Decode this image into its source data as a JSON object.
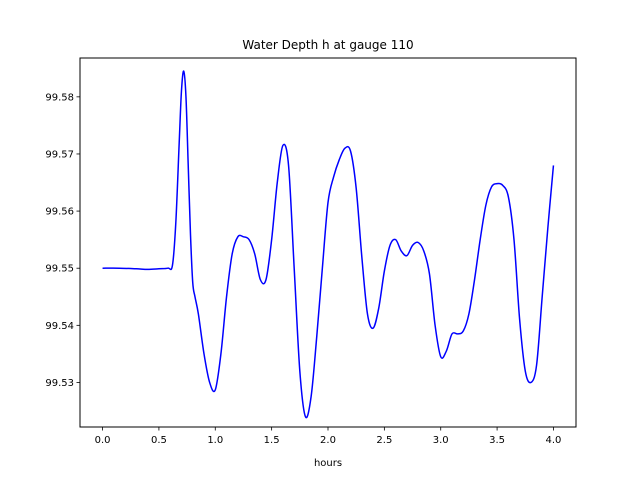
{
  "chart_data": {
    "type": "line",
    "title": "Water Depth h at gauge 110",
    "xlabel": "hours",
    "ylabel": "",
    "xlim": [
      -0.2,
      4.2
    ],
    "ylim": [
      99.5222,
      99.5868
    ],
    "x_ticks": [
      0.0,
      0.5,
      1.0,
      1.5,
      2.0,
      2.5,
      3.0,
      3.5,
      4.0
    ],
    "x_tick_labels": [
      "0.0",
      "0.5",
      "1.0",
      "1.5",
      "2.0",
      "2.5",
      "3.0",
      "3.5",
      "4.0"
    ],
    "y_ticks": [
      99.53,
      99.54,
      99.55,
      99.56,
      99.57,
      99.58
    ],
    "y_tick_labels": [
      "99.53",
      "99.54",
      "99.55",
      "99.56",
      "99.57",
      "99.58"
    ],
    "grid": false,
    "legend": "none",
    "series": [
      {
        "color": "#0000ff",
        "x": [
          0.0,
          0.15,
          0.3,
          0.4,
          0.5,
          0.58,
          0.62,
          0.65,
          0.68,
          0.7,
          0.72,
          0.74,
          0.76,
          0.78,
          0.8,
          0.82,
          0.85,
          0.9,
          0.95,
          1.0,
          1.05,
          1.1,
          1.15,
          1.2,
          1.25,
          1.3,
          1.35,
          1.4,
          1.45,
          1.5,
          1.55,
          1.6,
          1.65,
          1.7,
          1.75,
          1.8,
          1.85,
          1.9,
          1.95,
          2.0,
          2.05,
          2.1,
          2.15,
          2.2,
          2.25,
          2.3,
          2.35,
          2.4,
          2.45,
          2.5,
          2.55,
          2.6,
          2.65,
          2.7,
          2.75,
          2.8,
          2.85,
          2.9,
          2.95,
          3.0,
          3.05,
          3.1,
          3.15,
          3.2,
          3.25,
          3.3,
          3.35,
          3.4,
          3.45,
          3.5,
          3.55,
          3.6,
          3.65,
          3.7,
          3.75,
          3.8,
          3.85,
          3.9,
          3.95,
          4.0
        ],
        "y": [
          99.55,
          99.55,
          99.5499,
          99.5498,
          99.5499,
          99.55,
          99.5505,
          99.558,
          99.572,
          99.581,
          99.5845,
          99.58,
          99.568,
          99.556,
          99.5475,
          99.545,
          99.542,
          99.535,
          99.53,
          99.5287,
          99.535,
          99.545,
          99.5525,
          99.5555,
          99.5555,
          99.555,
          99.5525,
          99.548,
          99.548,
          99.555,
          99.565,
          99.5715,
          99.568,
          99.55,
          99.532,
          99.524,
          99.5275,
          99.538,
          99.55,
          99.5615,
          99.566,
          99.569,
          99.571,
          99.5705,
          99.564,
          99.552,
          99.542,
          99.5395,
          99.543,
          99.5495,
          99.554,
          99.555,
          99.553,
          99.5522,
          99.554,
          99.5545,
          99.553,
          99.549,
          99.54,
          99.5345,
          99.5355,
          99.5385,
          99.5385,
          99.539,
          99.542,
          99.548,
          99.555,
          99.561,
          99.5642,
          99.5648,
          99.5645,
          99.5625,
          99.555,
          99.541,
          99.532,
          99.53,
          99.533,
          99.545,
          99.557,
          99.568
        ]
      }
    ]
  }
}
